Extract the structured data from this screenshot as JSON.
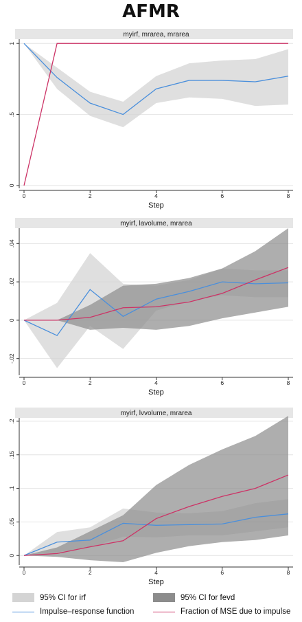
{
  "title": "AFMR",
  "colors": {
    "irf_line": "#4a8fdc",
    "fevd_line": "#cc3366",
    "irf_ci_fill": "#d4d4d4",
    "fevd_ci_fill": "#8c8c8c",
    "strip_bg": "#e6e6e6"
  },
  "legend": {
    "irf_ci": "95% CI for irf",
    "fevd_ci": "95% CI for fevd",
    "irf": "Impulse–response function",
    "fevd": "Fraction of MSE due to impulse"
  },
  "chart_data": [
    {
      "type": "line",
      "title": "myirf, mrarea, mrarea",
      "xlabel": "Step",
      "ylabel": "",
      "x": [
        0,
        1,
        2,
        3,
        4,
        5,
        6,
        7,
        8
      ],
      "xlim": [
        0,
        8
      ],
      "ylim": [
        -0.01,
        1.03
      ],
      "xticks": [
        "0",
        "2",
        "4",
        "6",
        "8"
      ],
      "yticks": [
        {
          "v": 0,
          "label": "0"
        },
        {
          "v": 0.5,
          "label": ".5"
        },
        {
          "v": 1,
          "label": "1"
        }
      ],
      "series": [
        {
          "name": "95% CI for irf",
          "kind": "band",
          "lower": [
            1,
            0.68,
            0.49,
            0.41,
            0.58,
            0.62,
            0.61,
            0.56,
            0.57
          ],
          "upper": [
            1,
            0.83,
            0.66,
            0.59,
            0.77,
            0.86,
            0.88,
            0.89,
            0.96
          ]
        },
        {
          "name": "95% CI for fevd",
          "kind": "band",
          "lower": [
            0,
            1,
            1,
            1,
            1,
            1,
            1,
            1,
            1
          ],
          "upper": [
            0,
            1,
            1,
            1,
            1,
            1,
            1,
            1,
            1
          ]
        },
        {
          "name": "Impulse–response function",
          "kind": "line",
          "values": [
            1,
            0.76,
            0.58,
            0.5,
            0.68,
            0.74,
            0.74,
            0.73,
            0.77
          ]
        },
        {
          "name": "Fraction of MSE due to impulse",
          "kind": "line",
          "values": [
            0,
            1,
            1,
            1,
            1,
            1,
            1,
            1,
            1
          ]
        }
      ]
    },
    {
      "type": "line",
      "title": "myirf, lavolume, mrarea",
      "xlabel": "Step",
      "ylabel": "",
      "x": [
        0,
        1,
        2,
        3,
        4,
        5,
        6,
        7,
        8
      ],
      "xlim": [
        0,
        8
      ],
      "ylim": [
        -0.028,
        0.048
      ],
      "xticks": [
        "0",
        "2",
        "4",
        "6",
        "8"
      ],
      "yticks": [
        {
          "v": -0.02,
          "label": "-.02"
        },
        {
          "v": 0,
          "label": "0"
        },
        {
          "v": 0.02,
          "label": ".02"
        },
        {
          "v": 0.04,
          "label": ".04"
        }
      ],
      "series": [
        {
          "name": "95% CI for irf",
          "kind": "band",
          "lower": [
            0,
            -0.025,
            -0.003,
            -0.015,
            0.005,
            0.01,
            0.013,
            0.012,
            0.012
          ],
          "upper": [
            0,
            0.009,
            0.035,
            0.019,
            0.018,
            0.021,
            0.027,
            0.026,
            0.026
          ]
        },
        {
          "name": "95% CI for fevd",
          "kind": "band",
          "lower": [
            0,
            0,
            -0.005,
            -0.004,
            -0.005,
            -0.003,
            0.001,
            0.004,
            0.007
          ],
          "upper": [
            0,
            0,
            0.008,
            0.018,
            0.019,
            0.022,
            0.027,
            0.036,
            0.048
          ]
        },
        {
          "name": "Impulse–response function",
          "kind": "line",
          "values": [
            0,
            -0.008,
            0.016,
            0.002,
            0.011,
            0.015,
            0.02,
            0.019,
            0.0195
          ]
        },
        {
          "name": "Fraction of MSE due to impulse",
          "kind": "line",
          "values": [
            0,
            0,
            0.0015,
            0.0065,
            0.007,
            0.0095,
            0.014,
            0.021,
            0.0275
          ]
        }
      ]
    },
    {
      "type": "line",
      "title": "myirf, lvvolume, mrarea",
      "xlabel": "Step",
      "ylabel": "",
      "x": [
        0,
        1,
        2,
        3,
        4,
        5,
        6,
        7,
        8
      ],
      "xlim": [
        0,
        8
      ],
      "ylim": [
        -0.012,
        0.205
      ],
      "xticks": [
        "0",
        "2",
        "4",
        "6",
        "8"
      ],
      "yticks": [
        {
          "v": 0,
          "label": "0"
        },
        {
          "v": 0.05,
          "label": ".05"
        },
        {
          "v": 0.1,
          "label": ".1"
        },
        {
          "v": 0.15,
          "label": ".15"
        },
        {
          "v": 0.2,
          "label": ".2"
        }
      ],
      "series": [
        {
          "name": "95% CI for irf",
          "kind": "band",
          "lower": [
            0,
            0.005,
            0.012,
            0.028,
            0.027,
            0.03,
            0.03,
            0.036,
            0.042
          ],
          "upper": [
            0,
            0.035,
            0.042,
            0.07,
            0.064,
            0.063,
            0.066,
            0.078,
            0.084
          ]
        },
        {
          "name": "95% CI for fevd",
          "kind": "band",
          "lower": [
            0,
            -0.002,
            -0.007,
            -0.01,
            0.004,
            0.014,
            0.02,
            0.023,
            0.03
          ],
          "upper": [
            0,
            0.012,
            0.036,
            0.06,
            0.105,
            0.135,
            0.158,
            0.178,
            0.208
          ]
        },
        {
          "name": "Impulse–response function",
          "kind": "line",
          "values": [
            0,
            0.02,
            0.023,
            0.048,
            0.045,
            0.046,
            0.047,
            0.057,
            0.062
          ]
        },
        {
          "name": "Fraction of MSE due to impulse",
          "kind": "line",
          "values": [
            0,
            0.003,
            0.013,
            0.022,
            0.055,
            0.073,
            0.088,
            0.1,
            0.12
          ]
        }
      ]
    }
  ]
}
